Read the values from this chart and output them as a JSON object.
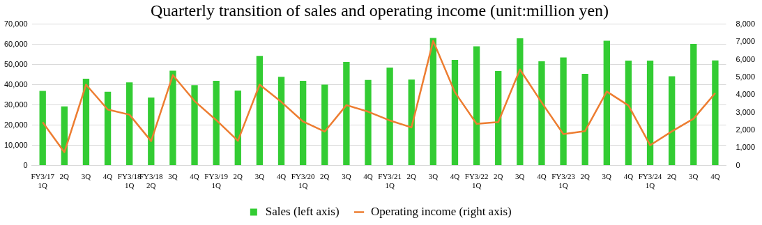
{
  "chart_data": {
    "type": "bar",
    "title": "Quarterly transition of sales and operating income (unit:million yen)",
    "categories": [
      "FY3/17\n1Q",
      "2Q",
      "3Q",
      "4Q",
      "FY3/18\n1Q",
      "FY3/18\n2Q",
      "3Q",
      "4Q",
      "FY3/19\n1Q",
      "2Q",
      "3Q",
      "4Q",
      "FY3/20\n1Q",
      "2Q",
      "3Q",
      "4Q",
      "FY3/21\n1Q",
      "2Q",
      "3Q",
      "4Q",
      "FY3/22\n1Q",
      "2Q",
      "3Q",
      "4Q",
      "FY3/23\n1Q",
      "2Q",
      "3Q",
      "4Q",
      "FY3/24\n1Q",
      "2Q",
      "3Q",
      "4Q"
    ],
    "series": [
      {
        "name": "Sales (left axis)",
        "color": "#33cc33",
        "values": [
          37000,
          29300,
          43000,
          36500,
          41200,
          33700,
          47000,
          39800,
          42000,
          37100,
          54300,
          44000,
          42000,
          40100,
          51300,
          42400,
          48500,
          42600,
          63200,
          52300,
          59100,
          46800,
          63000,
          51600,
          53500,
          45400,
          61800,
          52000,
          52000,
          44200,
          60300,
          52100
        ]
      },
      {
        "name": "Operating income (right axis)",
        "type": "line",
        "axis": "y2",
        "color": "#ed7d31",
        "values": [
          2450,
          750,
          4580,
          3170,
          2880,
          1380,
          5120,
          3650,
          2570,
          1400,
          4580,
          3600,
          2490,
          1920,
          3420,
          3050,
          2550,
          2160,
          7060,
          4150,
          2360,
          2460,
          5440,
          3570,
          1780,
          1950,
          4190,
          3400,
          1150,
          1930,
          2650,
          4100
        ]
      }
    ],
    "ylim": [
      0,
      70000
    ],
    "yticks": [
      0,
      {
        "value": 10000,
        "label": "10,000"
      },
      {
        "value": 20000,
        "label": "20,000"
      },
      {
        "value": 30000,
        "label": "30,000"
      },
      {
        "value": 40000,
        "label": "40,000"
      },
      {
        "value": 50000,
        "label": "50,000"
      },
      {
        "value": 60000,
        "label": "60,000"
      },
      {
        "value": 70000,
        "label": "70,000"
      }
    ],
    "y2lim": [
      0,
      8000
    ],
    "y2ticks": [
      0,
      {
        "value": 1000,
        "label": "1,000"
      },
      {
        "value": 2000,
        "label": "2,000"
      },
      {
        "value": 3000,
        "label": "3,000"
      },
      {
        "value": 4000,
        "label": "4,000"
      },
      {
        "value": 5000,
        "label": "5,000"
      },
      {
        "value": 6000,
        "label": "6,000"
      },
      {
        "value": 7000,
        "label": "7,000"
      },
      {
        "value": 8000,
        "label": "8,000"
      }
    ],
    "grid": "y",
    "legend": "bottom",
    "marker": "none"
  }
}
